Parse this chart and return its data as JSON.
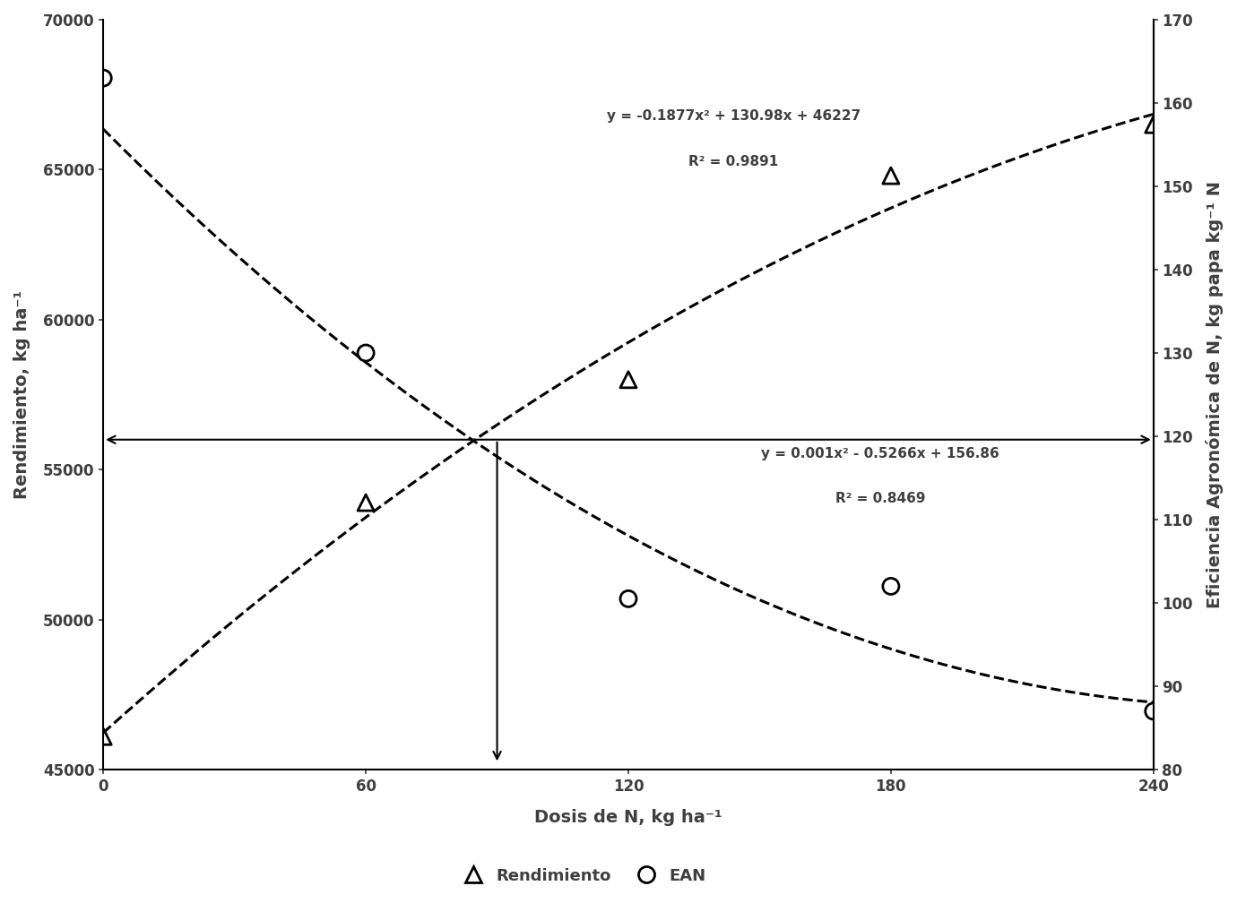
{
  "rendimiento_x": [
    0,
    60,
    120,
    180,
    240
  ],
  "rendimiento_y": [
    46100,
    53900,
    58000,
    64800,
    66500
  ],
  "ean_x": [
    0,
    60,
    120,
    180,
    240
  ],
  "ean_y": [
    163,
    130,
    100.5,
    102,
    87
  ],
  "rend_eq": "y = -0.1877x² + 130.98x + 46227",
  "rend_r2": "R² = 0.9891",
  "ean_eq": "y = 0.001x² - 0.5266x + 156.86",
  "ean_r2": "R² = 0.8469",
  "rend_poly": [
    -0.1877,
    130.98,
    46227
  ],
  "ean_poly": [
    0.001,
    -0.5266,
    156.86
  ],
  "xlabel": "Dosis de N, kg ha⁻¹",
  "ylabel_left": "Rendimiento, kg ha⁻¹",
  "ylabel_right": "Eficiencia Agronómica de N, kg papa kg⁻¹ N",
  "legend_triangle": "Rendimiento",
  "legend_circle": "EAN",
  "xlim": [
    0,
    240
  ],
  "ylim_left": [
    45000,
    70000
  ],
  "ylim_right": [
    80,
    170
  ],
  "yticks_left": [
    45000,
    50000,
    55000,
    60000,
    65000,
    70000
  ],
  "yticks_right": [
    80,
    90,
    100,
    110,
    120,
    130,
    140,
    150,
    160,
    170
  ],
  "xticks": [
    0,
    60,
    120,
    180,
    240
  ],
  "cross_x": 90,
  "cross_y_left": 56000,
  "marker_color": "#000000",
  "line_color": "#000000",
  "bg_color": "white",
  "font_color": "#3f3f3f",
  "marker_size": 13,
  "line_width": 2.2,
  "font_size_label": 14,
  "font_size_tick": 12,
  "font_size_eq": 11,
  "font_size_legend": 13
}
